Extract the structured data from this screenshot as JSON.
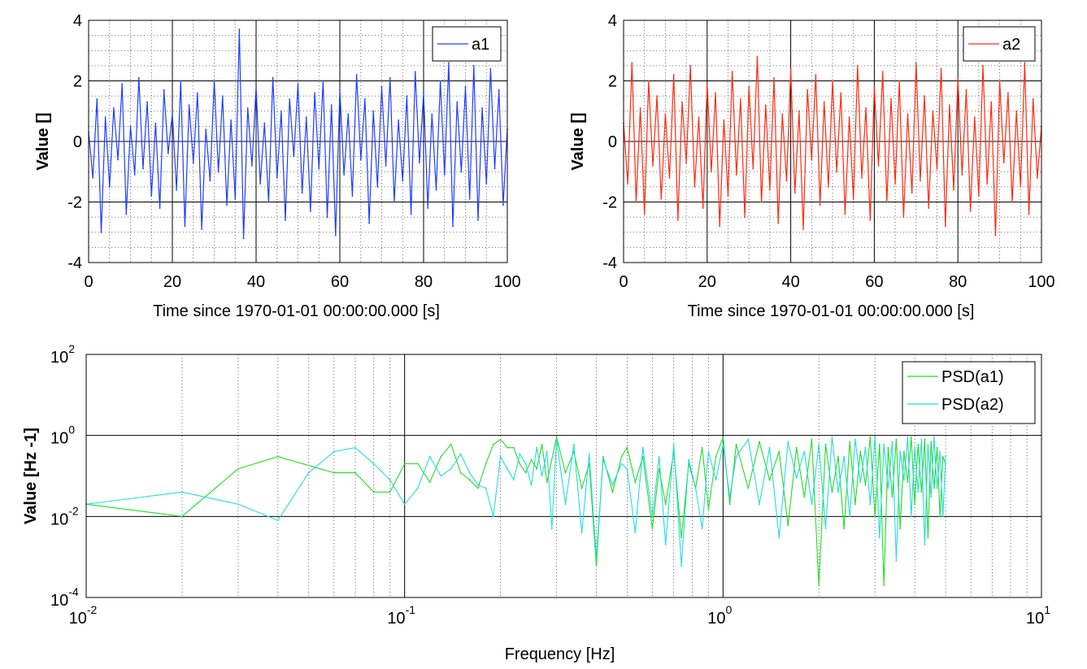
{
  "chart_data": [
    {
      "type": "line",
      "xlabel": "Time since 1970-01-01 00:00:00.000 [s]",
      "ylabel": "Value []",
      "xlim": [
        0,
        100
      ],
      "ylim": [
        -4,
        4
      ],
      "x_ticks": [
        "0",
        "20",
        "40",
        "60",
        "80",
        "100"
      ],
      "y_ticks": [
        "4",
        "2",
        "0",
        "-2",
        "-4"
      ],
      "grid": true,
      "legend_position": "top-right",
      "series": [
        {
          "name": "a1",
          "color": "#1f3dff",
          "x": [
            0,
            1,
            2,
            3,
            4,
            5,
            6,
            7,
            8,
            9,
            10,
            11,
            12,
            13,
            14,
            15,
            16,
            17,
            18,
            19,
            20,
            21,
            22,
            23,
            24,
            25,
            26,
            27,
            28,
            29,
            30,
            31,
            32,
            33,
            34,
            35,
            36,
            37,
            38,
            39,
            40,
            41,
            42,
            43,
            44,
            45,
            46,
            47,
            48,
            49,
            50,
            51,
            52,
            53,
            54,
            55,
            56,
            57,
            58,
            59,
            60,
            61,
            62,
            63,
            64,
            65,
            66,
            67,
            68,
            69,
            70,
            71,
            72,
            73,
            74,
            75,
            76,
            77,
            78,
            79,
            80,
            81,
            82,
            83,
            84,
            85,
            86,
            87,
            88,
            89,
            90,
            91,
            92,
            93,
            94,
            95,
            96,
            97,
            98,
            99,
            100
          ],
          "y": [
            0.3,
            -1.2,
            1.4,
            -3.0,
            0.8,
            -1.5,
            1.1,
            -0.6,
            1.9,
            -2.4,
            0.5,
            -1.1,
            2.1,
            -0.9,
            1.3,
            -1.8,
            0.6,
            -2.2,
            1.7,
            -0.4,
            0.9,
            -1.6,
            2.0,
            -2.8,
            1.2,
            -0.7,
            1.6,
            -2.9,
            0.4,
            -1.3,
            2.0,
            -1.0,
            1.5,
            -2.1,
            0.7,
            -1.9,
            3.7,
            -3.2,
            1.1,
            -0.8,
            1.8,
            -1.4,
            0.6,
            -2.0,
            2.1,
            -1.2,
            1.0,
            -2.6,
            1.4,
            -0.5,
            1.9,
            -1.7,
            0.8,
            -2.3,
            1.6,
            -0.9,
            2.0,
            -2.5,
            1.2,
            -3.1,
            1.7,
            -1.1,
            0.9,
            -1.8,
            2.2,
            -0.6,
            1.4,
            -2.7,
            1.0,
            -1.5,
            1.8,
            -0.8,
            2.1,
            -2.0,
            0.7,
            -1.3,
            1.5,
            -2.4,
            2.3,
            -0.7,
            1.6,
            -2.2,
            0.9,
            -1.6,
            2.0,
            -1.1,
            2.6,
            -2.8,
            1.3,
            -1.0,
            1.8,
            -1.9,
            2.5,
            -2.6,
            1.1,
            -1.4,
            2.4,
            -0.9,
            1.7,
            -2.1,
            0.4
          ]
        }
      ]
    },
    {
      "type": "line",
      "xlabel": "Time since 1970-01-01 00:00:00.000 [s]",
      "ylabel": "Value []",
      "xlim": [
        0,
        100
      ],
      "ylim": [
        -4,
        4
      ],
      "x_ticks": [
        "0",
        "20",
        "40",
        "60",
        "80",
        "100"
      ],
      "y_ticks": [
        "4",
        "2",
        "0",
        "-2",
        "-4"
      ],
      "grid": true,
      "legend_position": "top-right",
      "series": [
        {
          "name": "a2",
          "color": "#ff2a10",
          "x": [
            0,
            1,
            2,
            3,
            4,
            5,
            6,
            7,
            8,
            9,
            10,
            11,
            12,
            13,
            14,
            15,
            16,
            17,
            18,
            19,
            20,
            21,
            22,
            23,
            24,
            25,
            26,
            27,
            28,
            29,
            30,
            31,
            32,
            33,
            34,
            35,
            36,
            37,
            38,
            39,
            40,
            41,
            42,
            43,
            44,
            45,
            46,
            47,
            48,
            49,
            50,
            51,
            52,
            53,
            54,
            55,
            56,
            57,
            58,
            59,
            60,
            61,
            62,
            63,
            64,
            65,
            66,
            67,
            68,
            69,
            70,
            71,
            72,
            73,
            74,
            75,
            76,
            77,
            78,
            79,
            80,
            81,
            82,
            83,
            84,
            85,
            86,
            87,
            88,
            89,
            90,
            91,
            92,
            93,
            94,
            95,
            96,
            97,
            98,
            99,
            100
          ],
          "y": [
            0.6,
            -1.4,
            2.6,
            -2.0,
            1.1,
            -2.4,
            2.0,
            -0.8,
            1.5,
            -1.9,
            0.9,
            -1.2,
            2.2,
            -2.6,
            1.3,
            -0.7,
            2.5,
            -1.5,
            0.8,
            -2.2,
            1.9,
            -1.0,
            1.6,
            -2.8,
            0.7,
            -1.8,
            2.3,
            -1.1,
            1.4,
            -2.5,
            1.8,
            -0.9,
            2.8,
            -2.0,
            1.2,
            -1.6,
            2.1,
            -2.7,
            0.9,
            -1.3,
            2.4,
            -1.7,
            1.0,
            -2.9,
            1.7,
            -0.6,
            2.2,
            -2.1,
            1.3,
            -1.5,
            2.0,
            -1.0,
            1.6,
            -2.4,
            0.8,
            -1.9,
            2.5,
            -1.2,
            1.1,
            -2.6,
            1.8,
            -0.8,
            2.3,
            -2.0,
            1.4,
            -1.4,
            2.0,
            -2.5,
            0.9,
            -1.7,
            2.6,
            -1.3,
            1.5,
            -2.2,
            1.0,
            -0.9,
            2.4,
            -2.8,
            1.2,
            -1.6,
            2.1,
            -1.1,
            1.7,
            -2.3,
            0.8,
            -1.8,
            2.5,
            -1.4,
            1.3,
            -3.1,
            2.0,
            -0.7,
            1.6,
            -2.0,
            1.0,
            -1.5,
            2.6,
            -2.4,
            1.4,
            -1.2,
            0.5
          ]
        }
      ]
    },
    {
      "type": "line",
      "xlabel": "Frequency [Hz]",
      "ylabel": "Value [Hz -1]",
      "x_scale": "log",
      "y_scale": "log",
      "xlim": [
        0.01,
        10
      ],
      "ylim": [
        0.0001,
        100
      ],
      "x_ticks": [
        {
          "base": "10",
          "exp": "-2"
        },
        {
          "base": "10",
          "exp": "-1"
        },
        {
          "base": "10",
          "exp": "0"
        },
        {
          "base": "10",
          "exp": "1"
        }
      ],
      "y_ticks": [
        {
          "base": "10",
          "exp": "2"
        },
        {
          "base": "10",
          "exp": "0"
        },
        {
          "base": "10",
          "exp": "-2"
        },
        {
          "base": "10",
          "exp": "-4"
        }
      ],
      "grid": true,
      "legend_position": "top-right",
      "series": [
        {
          "name": "PSD(a1)",
          "color": "#22dd22",
          "x": [
            0.01,
            0.02,
            0.03,
            0.04,
            0.06,
            0.07,
            0.08,
            0.09,
            0.1,
            0.11,
            0.12,
            0.13,
            0.14,
            0.15,
            0.16,
            0.17,
            0.18,
            0.19,
            0.2,
            0.21,
            0.22,
            0.23,
            0.24,
            0.25,
            0.26,
            0.27,
            0.28,
            0.3,
            0.32,
            0.34,
            0.36,
            0.38,
            0.4,
            0.42,
            0.45,
            0.48,
            0.5,
            0.53,
            0.56,
            0.6,
            0.63,
            0.66,
            0.7,
            0.74,
            0.78,
            0.82,
            0.86,
            0.9,
            0.95,
            1.0,
            1.05,
            1.1,
            1.2,
            1.3,
            1.4,
            1.5,
            1.6,
            1.7,
            1.8,
            1.9,
            2.0,
            2.1,
            2.2,
            2.3,
            2.4,
            2.5,
            2.6,
            2.7,
            2.8,
            2.9,
            3.0,
            3.1,
            3.2,
            3.3,
            3.4,
            3.5,
            3.6,
            3.7,
            3.8,
            3.9,
            4.0,
            4.1,
            4.2,
            4.3,
            4.4,
            4.5,
            4.6,
            4.7,
            4.8,
            4.9,
            5.0
          ],
          "y": [
            0.02,
            0.01,
            0.15,
            0.3,
            0.12,
            0.12,
            0.04,
            0.04,
            0.2,
            0.2,
            0.07,
            0.3,
            0.6,
            0.12,
            0.08,
            0.05,
            0.2,
            0.6,
            0.8,
            0.5,
            0.5,
            0.2,
            0.12,
            0.25,
            0.15,
            0.6,
            0.07,
            0.9,
            0.12,
            0.4,
            0.05,
            0.2,
            0.0006,
            0.3,
            0.04,
            0.3,
            0.5,
            0.07,
            0.3,
            0.005,
            0.15,
            0.02,
            0.4,
            0.003,
            0.2,
            0.05,
            0.5,
            0.015,
            0.3,
            0.9,
            0.02,
            0.6,
            0.05,
            0.7,
            0.08,
            0.4,
            0.006,
            0.5,
            0.03,
            0.8,
            0.0002,
            0.6,
            0.04,
            0.3,
            0.005,
            0.7,
            0.02,
            0.4,
            0.06,
            0.9,
            0.01,
            0.6,
            0.0002,
            0.5,
            0.03,
            0.8,
            0.005,
            0.4,
            0.07,
            0.9,
            0.02,
            0.6,
            0.04,
            0.8,
            0.003,
            0.7,
            0.05,
            0.5,
            0.01,
            0.3,
            0.2
          ]
        },
        {
          "name": "PSD(a2)",
          "color": "#22dddd",
          "x": [
            0.01,
            0.02,
            0.03,
            0.04,
            0.05,
            0.06,
            0.07,
            0.08,
            0.09,
            0.1,
            0.11,
            0.12,
            0.13,
            0.14,
            0.15,
            0.16,
            0.17,
            0.18,
            0.19,
            0.2,
            0.21,
            0.22,
            0.23,
            0.24,
            0.25,
            0.26,
            0.27,
            0.28,
            0.29,
            0.3,
            0.32,
            0.34,
            0.36,
            0.38,
            0.4,
            0.42,
            0.45,
            0.48,
            0.5,
            0.53,
            0.56,
            0.6,
            0.63,
            0.66,
            0.7,
            0.74,
            0.78,
            0.82,
            0.86,
            0.9,
            0.95,
            1.0,
            1.05,
            1.1,
            1.2,
            1.3,
            1.4,
            1.5,
            1.6,
            1.7,
            1.8,
            1.9,
            2.0,
            2.1,
            2.2,
            2.3,
            2.4,
            2.5,
            2.6,
            2.7,
            2.8,
            2.9,
            3.0,
            3.1,
            3.2,
            3.3,
            3.4,
            3.5,
            3.6,
            3.7,
            3.8,
            3.9,
            4.0,
            4.1,
            4.2,
            4.3,
            4.4,
            4.5,
            4.6,
            4.7,
            4.8,
            4.9,
            5.0
          ],
          "y": [
            0.02,
            0.04,
            0.02,
            0.008,
            0.12,
            0.4,
            0.5,
            0.2,
            0.08,
            0.02,
            0.05,
            0.3,
            0.1,
            0.15,
            0.35,
            0.12,
            0.06,
            0.05,
            0.01,
            0.3,
            0.15,
            0.08,
            0.35,
            0.2,
            0.06,
            0.5,
            0.1,
            0.4,
            0.005,
            0.8,
            0.02,
            0.6,
            0.004,
            0.35,
            0.001,
            0.25,
            0.06,
            0.2,
            0.15,
            0.004,
            0.5,
            0.01,
            0.3,
            0.002,
            0.6,
            0.0006,
            0.25,
            0.05,
            0.005,
            0.4,
            0.08,
            0.6,
            0.03,
            0.3,
            0.8,
            0.02,
            0.5,
            0.003,
            0.7,
            0.09,
            0.4,
            0.02,
            0.6,
            0.005,
            0.9,
            0.04,
            0.3,
            0.01,
            0.8,
            0.07,
            0.5,
            0.02,
            0.9,
            0.003,
            0.6,
            0.05,
            0.7,
            0.0008,
            0.4,
            0.08,
            0.9,
            0.01,
            0.5,
            0.04,
            0.8,
            0.002,
            0.6,
            0.03,
            0.9,
            0.05,
            0.4,
            0.01,
            0.3
          ]
        }
      ]
    }
  ]
}
